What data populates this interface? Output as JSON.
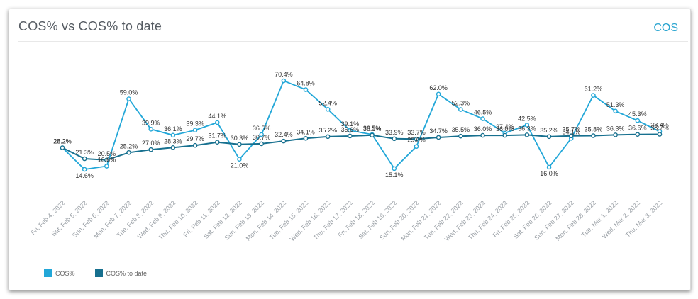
{
  "header": {
    "title": "COS% vs COS% to date",
    "link": "COS"
  },
  "colors": {
    "cos": "#22a7d8",
    "cos_to_date": "#17708f"
  },
  "chart_data": {
    "type": "line",
    "categories": [
      "Fri, Feb 4, 2022",
      "Sat, Feb 5, 2022",
      "Sun, Feb 6, 2022",
      "Mon, Feb 7, 2022",
      "Tue, Feb 8, 2022",
      "Wed, Feb 9, 2022",
      "Thu, Feb 10, 2022",
      "Fri, Feb 11, 2022",
      "Sat, Feb 12, 2022",
      "Sun, Feb 13, 2022",
      "Mon, Feb 14, 2022",
      "Tue, Feb 15, 2022",
      "Wed, Feb 16, 2022",
      "Thu, Feb 17, 2022",
      "Fri, Feb 18, 2022",
      "Sat, Feb 19, 2022",
      "Sun, Feb 20, 2022",
      "Mon, Feb 21, 2022",
      "Tue, Feb 22, 2022",
      "Wed, Feb 23, 2022",
      "Thu, Feb 24, 2022",
      "Fri, Feb 25, 2022",
      "Sat, Feb 26, 2022",
      "Sun, Feb 27, 2022",
      "Mon, Feb 28, 2022",
      "Tue, Mar 1, 2022",
      "Wed, Mar 2, 2022",
      "Thu, Mar 3, 2022"
    ],
    "series": [
      {
        "name": "COS%",
        "values": [
          28.2,
          14.6,
          16.6,
          59.0,
          39.9,
          36.1,
          39.3,
          44.1,
          21.0,
          36.5,
          70.4,
          64.8,
          52.4,
          39.1,
          36.5,
          15.1,
          29.0,
          62.0,
          52.3,
          46.5,
          37.4,
          42.5,
          16.0,
          34.1,
          61.2,
          51.3,
          45.3,
          38.4
        ],
        "labels": [
          "28.2%",
          "14.6%",
          "16.6%",
          "59.0%",
          "39.9%",
          "36.1%",
          "39.3%",
          "44.1%",
          "21.0%",
          "36.5%",
          "70.4%",
          "64.8%",
          "52.4%",
          "39.1%",
          "36.5%",
          "15.1%",
          "29.0%",
          "62.0%",
          "52.3%",
          "46.5%",
          "37.4%",
          "42.5%",
          "16.0%",
          "34.1%",
          "61.2%",
          "51.3%",
          "45.3%",
          "38.4%"
        ]
      },
      {
        "name": "COS% to date",
        "values": [
          28.2,
          21.3,
          20.5,
          25.2,
          27.0,
          28.3,
          29.7,
          31.7,
          30.3,
          30.7,
          32.4,
          34.1,
          35.2,
          35.6,
          36.1,
          33.9,
          33.7,
          34.7,
          35.5,
          36.0,
          36.0,
          36.3,
          35.2,
          35.7,
          35.8,
          36.3,
          36.6,
          36.7
        ],
        "labels": [
          "28.2%",
          "21.3%",
          "20.5%",
          "25.2%",
          "27.0%",
          "28.3%",
          "29.7%",
          "31.7%",
          "30.3%",
          "30.7%",
          "32.4%",
          "34.1%",
          "35.2%",
          "35.6%",
          "36.1%",
          "33.9%",
          "33.7%",
          "34.7%",
          "35.5%",
          "36.0%",
          "36.0%",
          "36.3%",
          "35.2%",
          "35.7%",
          "35.8%",
          "36.3%",
          "36.6%",
          "36.7%"
        ]
      }
    ],
    "ylim": [
      10,
      75
    ],
    "grid": false,
    "legend": "bottom-left"
  }
}
